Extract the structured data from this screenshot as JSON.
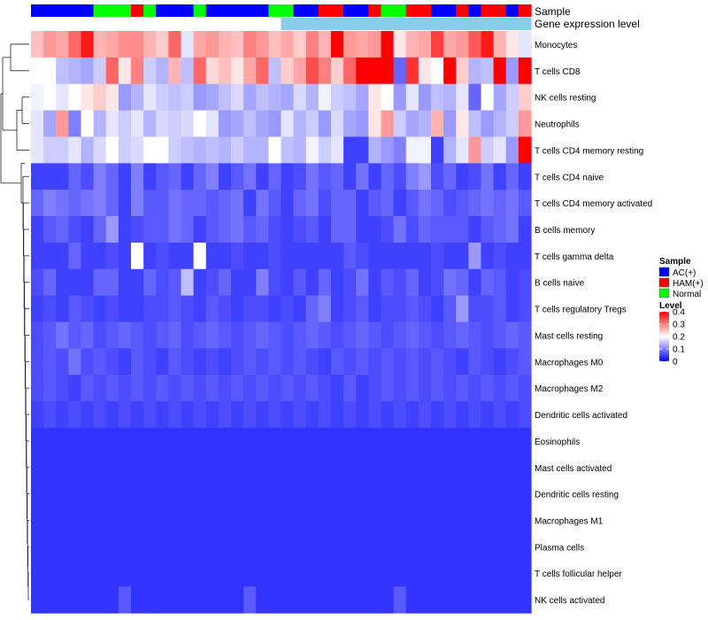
{
  "chart_data": {
    "type": "heatmap",
    "title": "",
    "annotation_labels": [
      "Sample",
      "Gene expression level"
    ],
    "rows": [
      "Monocytes",
      "T cells CD8",
      "NK cells resting",
      "Neutrophils",
      "T cells CD4 memory resting",
      "T cells CD4 naive",
      "T cells CD4 memory activated",
      "B cells memory",
      "T cells gamma delta",
      "B cells naive",
      "T cells regulatory  Tregs",
      "Mast cells resting",
      "Macrophages M0",
      "Macrophages M2",
      "Dendritic cells activated",
      "Eosinophils",
      "Mast cells activated",
      "Dendritic cells resting",
      "Macrophages M1",
      "Plasma cells",
      "T cells follicular helper",
      "NK cells activated"
    ],
    "sample_groups": [
      "AC(+)",
      "AC(+)",
      "AC(+)",
      "AC(+)",
      "AC(+)",
      "Normal",
      "Normal",
      "Normal",
      "HAM(+)",
      "Normal",
      "AC(+)",
      "AC(+)",
      "AC(+)",
      "Normal",
      "AC(+)",
      "AC(+)",
      "AC(+)",
      "AC(+)",
      "AC(+)",
      "Normal",
      "Normal",
      "AC(+)",
      "AC(+)",
      "HAM(+)",
      "HAM(+)",
      "AC(+)",
      "AC(+)",
      "HAM(+)",
      "Normal",
      "Normal",
      "HAM(+)",
      "HAM(+)",
      "AC(+)",
      "AC(+)",
      "HAM(+)",
      "AC(+)",
      "HAM(+)",
      "HAM(+)",
      "AC(+)",
      "HAM(+)"
    ],
    "expression_level": [
      "high",
      "high",
      "high",
      "high",
      "high",
      "high",
      "high",
      "high",
      "high",
      "high",
      "high",
      "high",
      "high",
      "high",
      "high",
      "high",
      "high",
      "high",
      "high",
      "high",
      "low",
      "low",
      "low",
      "low",
      "low",
      "low",
      "low",
      "low",
      "low",
      "low",
      "low",
      "low",
      "low",
      "low",
      "low",
      "low",
      "low",
      "low",
      "low",
      "low"
    ],
    "values": [
      [
        0.25,
        0.28,
        0.27,
        0.32,
        0.38,
        0.26,
        0.27,
        0.29,
        0.29,
        0.26,
        0.24,
        0.32,
        0.18,
        0.27,
        0.28,
        0.26,
        0.25,
        0.3,
        0.28,
        0.25,
        0.27,
        0.24,
        0.3,
        0.26,
        0.4,
        0.28,
        0.27,
        0.28,
        0.42,
        0.22,
        0.26,
        0.27,
        0.35,
        0.27,
        0.28,
        0.33,
        0.38,
        0.26,
        0.22,
        0.18
      ],
      [
        0.2,
        0.2,
        0.15,
        0.14,
        0.13,
        0.16,
        0.32,
        0.22,
        0.3,
        0.16,
        0.14,
        0.26,
        0.15,
        0.32,
        0.23,
        0.25,
        0.22,
        0.27,
        0.32,
        0.15,
        0.24,
        0.27,
        0.34,
        0.3,
        0.24,
        0.32,
        0.42,
        0.44,
        0.45,
        0.08,
        0.36,
        0.22,
        0.2,
        0.42,
        0.24,
        0.14,
        0.15,
        0.4,
        0.12,
        0.45
      ],
      [
        0.19,
        0.2,
        0.18,
        0.2,
        0.22,
        0.24,
        0.22,
        0.12,
        0.14,
        0.18,
        0.16,
        0.15,
        0.16,
        0.12,
        0.13,
        0.15,
        0.17,
        0.13,
        0.15,
        0.14,
        0.13,
        0.17,
        0.14,
        0.19,
        0.16,
        0.15,
        0.13,
        0.22,
        0.2,
        0.12,
        0.18,
        0.12,
        0.15,
        0.14,
        0.18,
        0.08,
        0.2,
        0.13,
        0.16,
        0.24
      ],
      [
        0.18,
        0.13,
        0.28,
        0.1,
        0.2,
        0.14,
        0.18,
        0.16,
        0.18,
        0.14,
        0.17,
        0.16,
        0.17,
        0.2,
        0.18,
        0.12,
        0.13,
        0.15,
        0.13,
        0.12,
        0.18,
        0.14,
        0.16,
        0.12,
        0.17,
        0.13,
        0.12,
        0.22,
        0.28,
        0.16,
        0.13,
        0.14,
        0.26,
        0.12,
        0.22,
        0.15,
        0.12,
        0.14,
        0.16,
        0.28
      ],
      [
        0.18,
        0.16,
        0.16,
        0.18,
        0.14,
        0.17,
        0.2,
        0.16,
        0.17,
        0.2,
        0.2,
        0.16,
        0.15,
        0.14,
        0.15,
        0.14,
        0.16,
        0.14,
        0.14,
        0.2,
        0.15,
        0.14,
        0.19,
        0.16,
        0.18,
        0.05,
        0.05,
        0.14,
        0.12,
        0.1,
        0.19,
        0.19,
        0.05,
        0.14,
        0.18,
        0.28,
        0.16,
        0.18,
        0.12,
        0.42
      ],
      [
        0.05,
        0.05,
        0.05,
        0.08,
        0.06,
        0.1,
        0.08,
        0.05,
        0.1,
        0.05,
        0.07,
        0.08,
        0.05,
        0.08,
        0.1,
        0.05,
        0.07,
        0.09,
        0.05,
        0.08,
        0.05,
        0.06,
        0.09,
        0.07,
        0.08,
        0.05,
        0.09,
        0.05,
        0.08,
        0.06,
        0.1,
        0.12,
        0.06,
        0.08,
        0.05,
        0.06,
        0.09,
        0.05,
        0.08,
        0.05
      ],
      [
        0.08,
        0.1,
        0.09,
        0.08,
        0.09,
        0.1,
        0.08,
        0.05,
        0.1,
        0.07,
        0.07,
        0.09,
        0.08,
        0.08,
        0.07,
        0.08,
        0.09,
        0.05,
        0.09,
        0.07,
        0.05,
        0.08,
        0.09,
        0.06,
        0.08,
        0.08,
        0.05,
        0.07,
        0.08,
        0.05,
        0.07,
        0.09,
        0.08,
        0.06,
        0.07,
        0.08,
        0.09,
        0.08,
        0.09,
        0.07
      ],
      [
        0.05,
        0.07,
        0.08,
        0.06,
        0.05,
        0.08,
        0.12,
        0.05,
        0.06,
        0.07,
        0.07,
        0.09,
        0.08,
        0.05,
        0.07,
        0.08,
        0.09,
        0.07,
        0.08,
        0.06,
        0.05,
        0.06,
        0.07,
        0.05,
        0.08,
        0.08,
        0.05,
        0.05,
        0.06,
        0.09,
        0.06,
        0.08,
        0.07,
        0.07,
        0.07,
        0.05,
        0.07,
        0.08,
        0.09,
        0.05
      ],
      [
        0.05,
        0.05,
        0.05,
        0.08,
        0.05,
        0.05,
        0.06,
        0.05,
        0.2,
        0.05,
        0.06,
        0.05,
        0.05,
        0.2,
        0.05,
        0.05,
        0.06,
        0.05,
        0.05,
        0.06,
        0.05,
        0.05,
        0.05,
        0.05,
        0.05,
        0.07,
        0.06,
        0.05,
        0.05,
        0.05,
        0.05,
        0.05,
        0.06,
        0.05,
        0.05,
        0.12,
        0.05,
        0.06,
        0.05,
        0.05
      ],
      [
        0.06,
        0.08,
        0.05,
        0.05,
        0.05,
        0.08,
        0.08,
        0.05,
        0.05,
        0.08,
        0.06,
        0.07,
        0.15,
        0.05,
        0.06,
        0.08,
        0.05,
        0.05,
        0.1,
        0.06,
        0.05,
        0.07,
        0.05,
        0.08,
        0.05,
        0.06,
        0.09,
        0.05,
        0.07,
        0.06,
        0.08,
        0.05,
        0.06,
        0.09,
        0.08,
        0.05,
        0.08,
        0.07,
        0.05,
        0.06
      ],
      [
        0.05,
        0.06,
        0.05,
        0.07,
        0.06,
        0.05,
        0.06,
        0.05,
        0.05,
        0.06,
        0.06,
        0.07,
        0.06,
        0.05,
        0.07,
        0.06,
        0.05,
        0.06,
        0.06,
        0.05,
        0.06,
        0.05,
        0.08,
        0.1,
        0.05,
        0.06,
        0.07,
        0.05,
        0.06,
        0.06,
        0.07,
        0.06,
        0.05,
        0.07,
        0.12,
        0.06,
        0.06,
        0.07,
        0.05,
        0.06
      ],
      [
        0.06,
        0.07,
        0.09,
        0.07,
        0.08,
        0.06,
        0.07,
        0.08,
        0.07,
        0.06,
        0.07,
        0.08,
        0.06,
        0.07,
        0.08,
        0.07,
        0.06,
        0.07,
        0.08,
        0.07,
        0.06,
        0.07,
        0.08,
        0.07,
        0.06,
        0.07,
        0.08,
        0.07,
        0.06,
        0.07,
        0.08,
        0.07,
        0.06,
        0.07,
        0.08,
        0.07,
        0.06,
        0.07,
        0.08,
        0.07
      ],
      [
        0.06,
        0.07,
        0.06,
        0.09,
        0.06,
        0.07,
        0.06,
        0.05,
        0.07,
        0.06,
        0.05,
        0.07,
        0.06,
        0.05,
        0.06,
        0.05,
        0.06,
        0.07,
        0.06,
        0.07,
        0.06,
        0.07,
        0.06,
        0.05,
        0.07,
        0.06,
        0.07,
        0.06,
        0.07,
        0.06,
        0.07,
        0.06,
        0.07,
        0.06,
        0.05,
        0.07,
        0.06,
        0.05,
        0.06,
        0.07
      ],
      [
        0.06,
        0.07,
        0.06,
        0.05,
        0.07,
        0.06,
        0.07,
        0.06,
        0.07,
        0.06,
        0.07,
        0.06,
        0.07,
        0.06,
        0.07,
        0.06,
        0.07,
        0.06,
        0.07,
        0.06,
        0.07,
        0.06,
        0.07,
        0.06,
        0.05,
        0.07,
        0.05,
        0.06,
        0.07,
        0.06,
        0.07,
        0.06,
        0.07,
        0.06,
        0.07,
        0.06,
        0.07,
        0.06,
        0.07,
        0.06
      ],
      [
        0.05,
        0.06,
        0.05,
        0.06,
        0.05,
        0.06,
        0.05,
        0.06,
        0.05,
        0.06,
        0.05,
        0.06,
        0.05,
        0.06,
        0.05,
        0.06,
        0.05,
        0.06,
        0.05,
        0.06,
        0.05,
        0.06,
        0.05,
        0.06,
        0.05,
        0.06,
        0.05,
        0.06,
        0.05,
        0.06,
        0.05,
        0.06,
        0.05,
        0.06,
        0.05,
        0.06,
        0.05,
        0.06,
        0.05,
        0.06
      ],
      [
        0.04,
        0.04,
        0.04,
        0.04,
        0.04,
        0.04,
        0.04,
        0.04,
        0.04,
        0.04,
        0.04,
        0.04,
        0.04,
        0.04,
        0.04,
        0.04,
        0.04,
        0.04,
        0.04,
        0.04,
        0.04,
        0.04,
        0.04,
        0.04,
        0.04,
        0.04,
        0.04,
        0.04,
        0.04,
        0.04,
        0.04,
        0.04,
        0.04,
        0.04,
        0.04,
        0.04,
        0.04,
        0.04,
        0.04,
        0.04
      ],
      [
        0.04,
        0.04,
        0.04,
        0.04,
        0.04,
        0.04,
        0.04,
        0.04,
        0.04,
        0.04,
        0.04,
        0.04,
        0.04,
        0.04,
        0.04,
        0.04,
        0.04,
        0.04,
        0.04,
        0.04,
        0.04,
        0.04,
        0.04,
        0.04,
        0.04,
        0.04,
        0.04,
        0.04,
        0.04,
        0.04,
        0.04,
        0.04,
        0.04,
        0.04,
        0.04,
        0.04,
        0.04,
        0.04,
        0.04,
        0.04
      ],
      [
        0.04,
        0.04,
        0.04,
        0.04,
        0.04,
        0.04,
        0.04,
        0.04,
        0.04,
        0.04,
        0.04,
        0.04,
        0.04,
        0.04,
        0.04,
        0.04,
        0.04,
        0.04,
        0.04,
        0.04,
        0.04,
        0.04,
        0.04,
        0.04,
        0.04,
        0.04,
        0.04,
        0.04,
        0.04,
        0.04,
        0.04,
        0.04,
        0.04,
        0.04,
        0.04,
        0.04,
        0.04,
        0.04,
        0.04,
        0.04
      ],
      [
        0.04,
        0.04,
        0.04,
        0.04,
        0.04,
        0.04,
        0.04,
        0.04,
        0.04,
        0.04,
        0.04,
        0.04,
        0.04,
        0.04,
        0.04,
        0.04,
        0.04,
        0.04,
        0.04,
        0.04,
        0.04,
        0.04,
        0.04,
        0.04,
        0.04,
        0.04,
        0.04,
        0.04,
        0.04,
        0.04,
        0.04,
        0.04,
        0.04,
        0.04,
        0.04,
        0.04,
        0.04,
        0.04,
        0.04,
        0.04
      ],
      [
        0.04,
        0.04,
        0.04,
        0.04,
        0.04,
        0.04,
        0.04,
        0.04,
        0.04,
        0.04,
        0.04,
        0.04,
        0.04,
        0.04,
        0.04,
        0.04,
        0.04,
        0.04,
        0.04,
        0.04,
        0.04,
        0.04,
        0.04,
        0.04,
        0.04,
        0.04,
        0.04,
        0.04,
        0.04,
        0.04,
        0.04,
        0.04,
        0.04,
        0.04,
        0.04,
        0.04,
        0.04,
        0.04,
        0.04,
        0.04
      ],
      [
        0.04,
        0.04,
        0.04,
        0.04,
        0.04,
        0.04,
        0.04,
        0.04,
        0.04,
        0.04,
        0.04,
        0.04,
        0.04,
        0.04,
        0.04,
        0.04,
        0.04,
        0.04,
        0.04,
        0.04,
        0.04,
        0.04,
        0.04,
        0.04,
        0.04,
        0.04,
        0.04,
        0.04,
        0.04,
        0.04,
        0.04,
        0.04,
        0.04,
        0.04,
        0.04,
        0.04,
        0.04,
        0.04,
        0.04,
        0.04
      ],
      [
        0.04,
        0.04,
        0.04,
        0.04,
        0.04,
        0.04,
        0.04,
        0.07,
        0.04,
        0.04,
        0.04,
        0.04,
        0.04,
        0.04,
        0.04,
        0.04,
        0.04,
        0.07,
        0.04,
        0.04,
        0.04,
        0.04,
        0.04,
        0.04,
        0.04,
        0.04,
        0.04,
        0.04,
        0.04,
        0.07,
        0.04,
        0.04,
        0.04,
        0.04,
        0.04,
        0.04,
        0.04,
        0.04,
        0.04,
        0.04
      ]
    ],
    "legend_sample": {
      "title": "Sample",
      "entries": [
        {
          "label": "AC(+)",
          "color": "#0000ff"
        },
        {
          "label": "HAM(+)",
          "color": "#ff0000"
        },
        {
          "label": "Normal",
          "color": "#00ff00"
        }
      ]
    },
    "legend_level": {
      "title": "Level",
      "ticks": [
        "0.4",
        "0.3",
        "0.2",
        "0.1",
        "0"
      ],
      "tick_values": [
        0.4,
        0.3,
        0.2,
        0.1,
        0
      ],
      "range": [
        0.0,
        0.4
      ]
    },
    "expression_colors": {
      "high": "#ffffff",
      "low": "#87ceeb"
    },
    "colormap": {
      "low": "#0000ff",
      "mid": "#ffffff",
      "high": "#ff0000"
    }
  }
}
